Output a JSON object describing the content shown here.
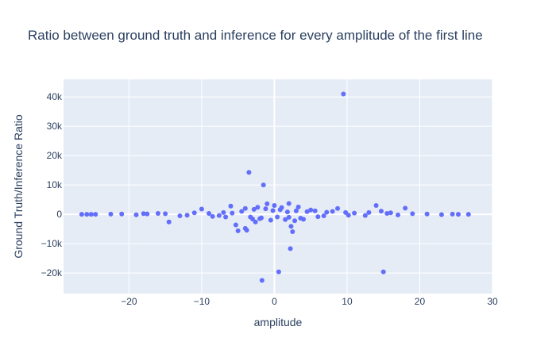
{
  "chart_data": {
    "type": "scatter",
    "title": "Ratio between ground truth and inference for every amplitude of the first line",
    "xlabel": "amplitude",
    "ylabel": "Ground Truth/Inference Ratio",
    "xlim": [
      -29,
      30
    ],
    "ylim": [
      -27000,
      46000
    ],
    "x_ticks": [
      -20,
      -10,
      0,
      10,
      20,
      30
    ],
    "x_tick_labels": [
      "−20",
      "−10",
      "0",
      "10",
      "20",
      "30"
    ],
    "y_ticks": [
      -20000,
      -10000,
      0,
      10000,
      20000,
      30000,
      40000
    ],
    "y_tick_labels": [
      "−20k",
      "−10k",
      "0",
      "10k",
      "20k",
      "30k",
      "40k"
    ],
    "grid": true,
    "legend": "none",
    "colors": {
      "marker": "#636efa",
      "plot_background": "#e5ecf6",
      "grid": "#ffffff",
      "text": "#2a3f5f"
    },
    "series": [
      {
        "points": [
          [
            9.5,
            41000
          ],
          [
            -3.5,
            14300
          ],
          [
            -1.5,
            10000
          ],
          [
            14,
            3000
          ],
          [
            18,
            2100
          ],
          [
            -6,
            2800
          ],
          [
            -10,
            1800
          ],
          [
            2,
            3700
          ],
          [
            -1,
            3600
          ],
          [
            0,
            3000
          ],
          [
            8.7,
            2000
          ],
          [
            -14.5,
            -2600
          ],
          [
            -5.3,
            -3600
          ],
          [
            -5,
            -5600
          ],
          [
            -4,
            -4800
          ],
          [
            -3.8,
            -5400
          ],
          [
            2.3,
            -4100
          ],
          [
            2.5,
            -5900
          ],
          [
            2.2,
            -11700
          ],
          [
            -1.7,
            -22500
          ],
          [
            0.6,
            -19600
          ],
          [
            15,
            -19600
          ],
          [
            -26.5,
            0
          ],
          [
            -25.8,
            0
          ],
          [
            -25.2,
            0
          ],
          [
            -24.6,
            0
          ],
          [
            26.7,
            0
          ],
          [
            3,
            1200
          ],
          [
            -2,
            -1500
          ],
          [
            1.5,
            -1800
          ],
          [
            -3,
            -1600
          ],
          [
            4.5,
            900
          ],
          [
            -7,
            600
          ],
          [
            6,
            -800
          ],
          [
            -2.8,
            1700
          ],
          [
            3.6,
            -1300
          ],
          [
            1,
            2300
          ],
          [
            -0.5,
            -2000
          ],
          [
            5,
            1500
          ],
          [
            -8.5,
            -700
          ],
          [
            7.2,
            700
          ],
          [
            -4.5,
            1000
          ],
          [
            2.8,
            -2200
          ],
          [
            -1.2,
            1900
          ],
          [
            0.4,
            -900
          ],
          [
            11,
            400
          ],
          [
            -12,
            -300
          ],
          [
            16,
            500
          ],
          [
            -16,
            300
          ],
          [
            12.5,
            -400
          ],
          [
            -11,
            500
          ],
          [
            4,
            -1700
          ],
          [
            -2.3,
            2400
          ],
          [
            2,
            -1000
          ],
          [
            -0.2,
            1300
          ],
          [
            1.8,
            800
          ],
          [
            -3.3,
            -900
          ],
          [
            6.8,
            -500
          ],
          [
            -5.8,
            400
          ],
          [
            8,
            1000
          ],
          [
            -9,
            300
          ],
          [
            10.2,
            -300
          ],
          [
            -6.7,
            -900
          ],
          [
            3.3,
            2500
          ],
          [
            -1.8,
            -1200
          ],
          [
            0.8,
            1600
          ],
          [
            -4,
            2000
          ],
          [
            13,
            600
          ],
          [
            -13,
            -500
          ],
          [
            15.5,
            300
          ],
          [
            -15,
            200
          ],
          [
            17,
            -200
          ],
          [
            -17.5,
            150
          ],
          [
            19,
            200
          ],
          [
            -19,
            -150
          ],
          [
            21,
            100
          ],
          [
            -21,
            100
          ],
          [
            23,
            -100
          ],
          [
            -22.5,
            80
          ],
          [
            24.5,
            60
          ],
          [
            25.3,
            0
          ],
          [
            -18,
            250
          ],
          [
            14.7,
            1100
          ],
          [
            9.8,
            600
          ],
          [
            -7.6,
            -400
          ],
          [
            5.6,
            1200
          ],
          [
            -2.6,
            -2600
          ]
        ]
      }
    ]
  }
}
